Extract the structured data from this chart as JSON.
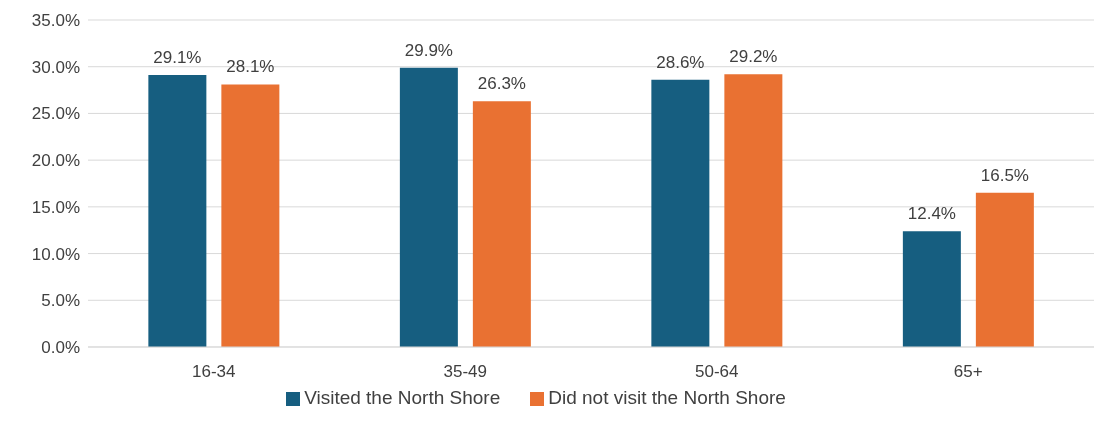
{
  "chart_data": {
    "type": "bar",
    "categories": [
      "16-34",
      "35-49",
      "50-64",
      "65+"
    ],
    "series": [
      {
        "name": "Visited the North Shore",
        "color": "#165e80",
        "values": [
          29.1,
          29.9,
          28.6,
          12.4
        ],
        "value_labels": [
          "29.1%",
          "29.9%",
          "28.6%",
          "12.4%"
        ]
      },
      {
        "name": "Did not visit the North Shore",
        "color": "#e97132",
        "values": [
          28.1,
          26.3,
          29.2,
          16.5
        ],
        "value_labels": [
          "28.1%",
          "26.3%",
          "29.2%",
          "16.5%"
        ]
      }
    ],
    "ylim": [
      0,
      35
    ],
    "yticks": [
      {
        "value": 0,
        "label": "0.0%"
      },
      {
        "value": 5,
        "label": "5.0%"
      },
      {
        "value": 10,
        "label": "10.0%"
      },
      {
        "value": 15,
        "label": "15.0%"
      },
      {
        "value": 20,
        "label": "20.0%"
      },
      {
        "value": 25,
        "label": "25.0%"
      },
      {
        "value": 30,
        "label": "30.0%"
      },
      {
        "value": 35,
        "label": "35.0%"
      }
    ],
    "grid": "y",
    "legend": "bottom"
  }
}
